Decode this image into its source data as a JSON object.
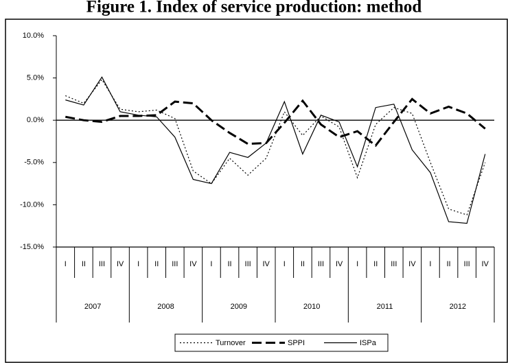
{
  "chart_data": {
    "type": "line",
    "title": "Figure 1. Index of service production: method",
    "categories": [
      "I",
      "II",
      "III",
      "IV",
      "I",
      "II",
      "III",
      "IV",
      "I",
      "II",
      "III",
      "IV",
      "I",
      "II",
      "III",
      "IV",
      "I",
      "II",
      "III",
      "IV",
      "I",
      "II",
      "III",
      "IV"
    ],
    "x_groups": [
      "2007",
      "2008",
      "2009",
      "2010",
      "2011",
      "2012"
    ],
    "series": [
      {
        "name": "Turnover",
        "color": "#000000",
        "style": "dotted",
        "values": [
          2.9,
          2.0,
          4.8,
          1.3,
          1.0,
          1.2,
          0.2,
          -6.0,
          -7.5,
          -4.5,
          -6.5,
          -4.5,
          1.0,
          -1.8,
          0.5,
          -0.8,
          -6.8,
          -0.5,
          1.5,
          0.8,
          -5.0,
          -10.5,
          -11.2,
          -5.0
        ]
      },
      {
        "name": "SPPI",
        "color": "#000000",
        "style": "dashed",
        "values": [
          0.4,
          0.0,
          -0.2,
          0.5,
          0.5,
          0.6,
          2.2,
          2.0,
          0.0,
          -1.5,
          -2.8,
          -2.7,
          -0.3,
          2.3,
          -0.5,
          -2.0,
          -1.3,
          -3.0,
          -0.2,
          2.5,
          0.8,
          1.6,
          0.8,
          -1.0
        ]
      },
      {
        "name": "ISPa",
        "color": "#000000",
        "style": "solid",
        "values": [
          2.4,
          1.8,
          5.1,
          1.0,
          0.6,
          0.4,
          -2.0,
          -7.0,
          -7.5,
          -3.8,
          -4.4,
          -2.7,
          2.2,
          -4.0,
          0.6,
          -0.2,
          -5.5,
          1.5,
          1.9,
          -3.5,
          -6.2,
          -12.0,
          -12.2,
          -4.0
        ]
      }
    ],
    "ylim": [
      -15,
      10
    ],
    "yticks": [
      {
        "value": -15,
        "label": "-15.0%"
      },
      {
        "value": -10,
        "label": "-10.0%"
      },
      {
        "value": -5,
        "label": "-5.0%"
      },
      {
        "value": 0,
        "label": "0.0%"
      },
      {
        "value": 5,
        "label": "5.0%"
      },
      {
        "value": 10,
        "label": "10.0%"
      }
    ],
    "legend": "bottom"
  }
}
